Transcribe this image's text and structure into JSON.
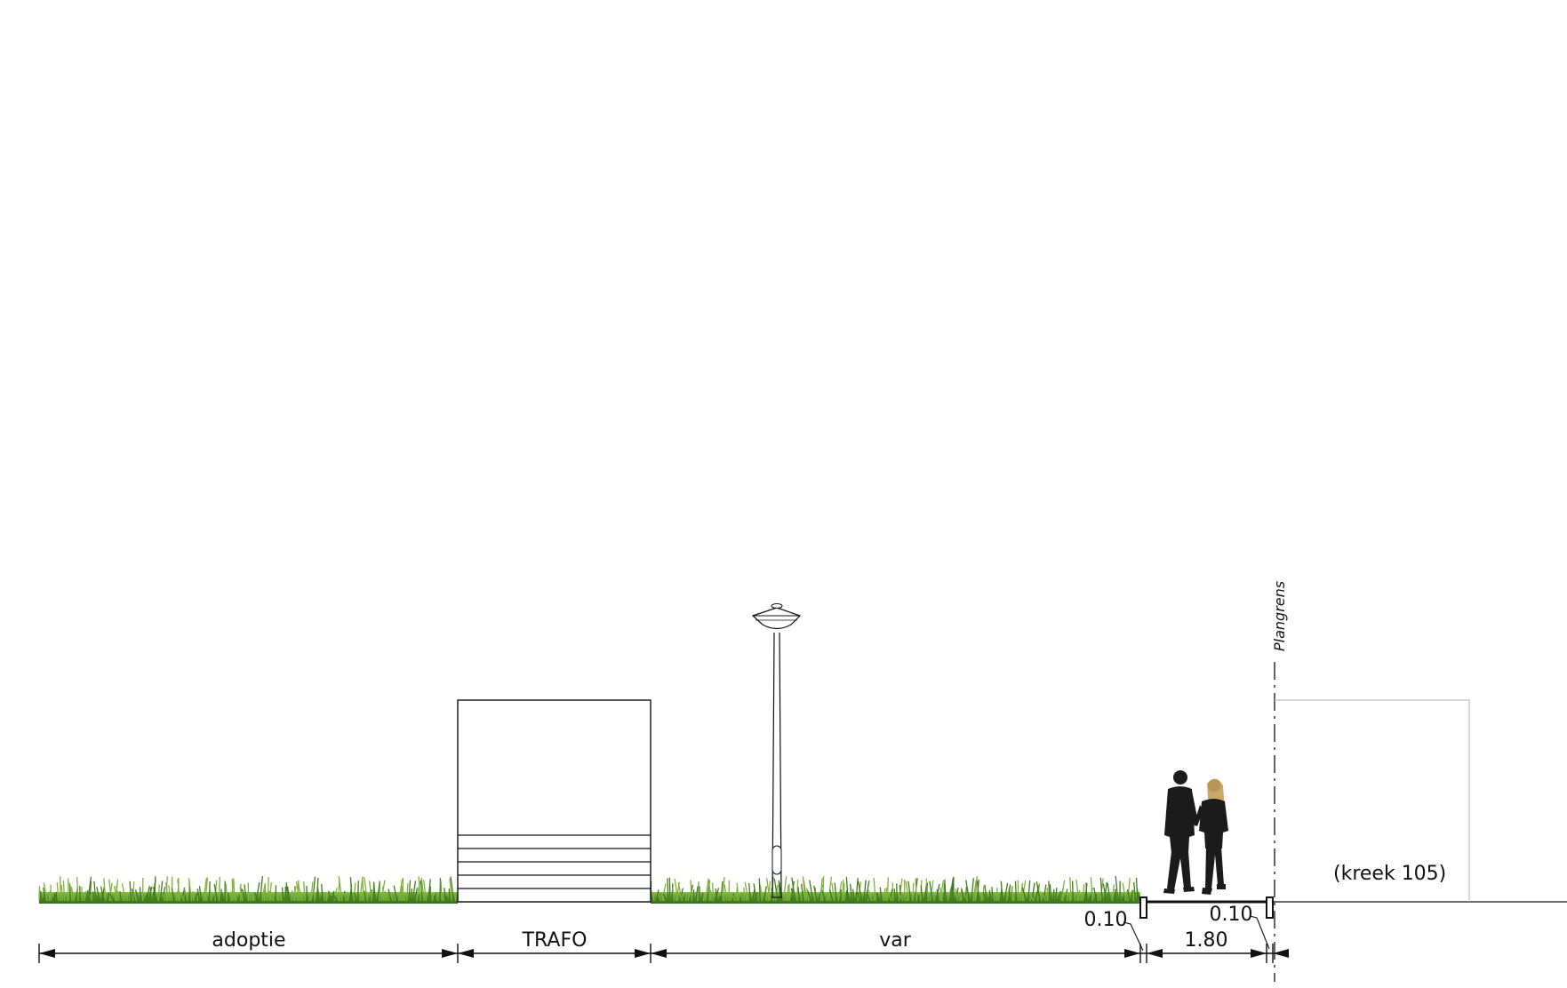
{
  "diagram": {
    "type": "street-cross-section",
    "labels": {
      "plangrens": "Plangrens",
      "kreek": "(kreek 105)"
    },
    "dimensions": [
      {
        "name": "adoptie",
        "label": "adoptie"
      },
      {
        "name": "trafo",
        "label": "TRAFO"
      },
      {
        "name": "var",
        "label": "var"
      },
      {
        "name": "curb-left",
        "label": "0.10"
      },
      {
        "name": "path",
        "label": "1.80"
      },
      {
        "name": "curb-right",
        "label": "0.10"
      }
    ],
    "colors": {
      "line": "#111111",
      "grass_dark": "#3f7a1d",
      "grass_light": "#7fb23a",
      "people": "#1b1b1b",
      "hair": "#c9a86a",
      "building_outline": "#bdbdbd"
    }
  }
}
